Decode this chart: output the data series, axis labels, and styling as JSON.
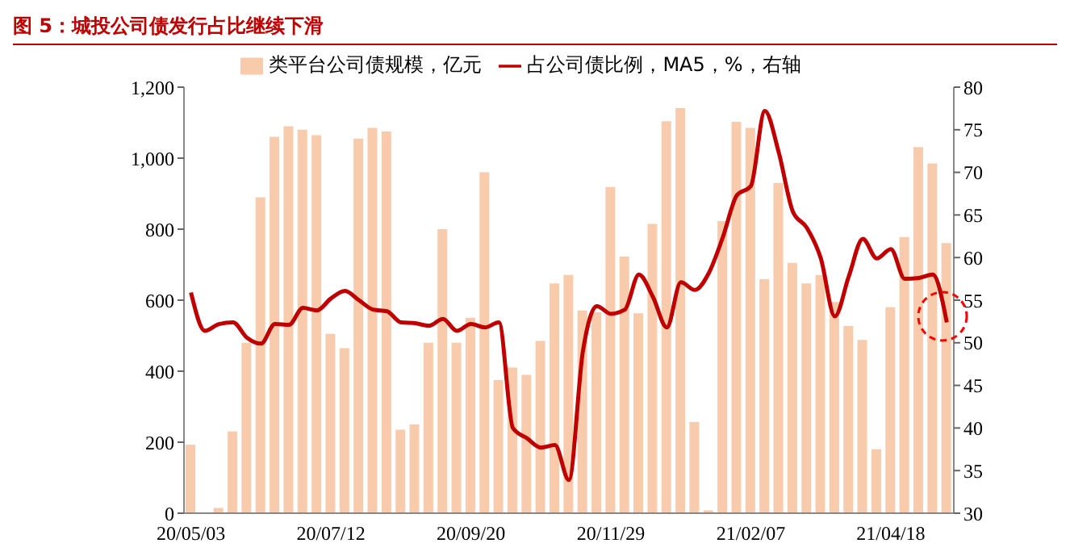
{
  "chart_data": {
    "type": "bar",
    "title": "图 5：城投公司债发行占比继续下滑",
    "categories": [
      "20/05/03",
      null,
      null,
      null,
      null,
      null,
      null,
      null,
      null,
      null,
      "20/07/12",
      null,
      null,
      null,
      null,
      null,
      null,
      null,
      null,
      null,
      "20/09/20",
      null,
      null,
      null,
      null,
      null,
      null,
      null,
      null,
      null,
      "20/11/29",
      null,
      null,
      null,
      null,
      null,
      null,
      null,
      null,
      null,
      "21/02/07",
      null,
      null,
      null,
      null,
      null,
      null,
      null,
      null,
      null,
      "21/04/18",
      null,
      null,
      null,
      null
    ],
    "series": [
      {
        "name": "类平台公司债规模，亿元",
        "color": "#f8cbad",
        "values": [
          193,
          0,
          15,
          230,
          480,
          890,
          1060,
          1090,
          1080,
          1065,
          505,
          465,
          1055,
          1085,
          1075,
          235,
          250,
          480,
          800,
          480,
          550,
          960,
          375,
          410,
          390,
          485,
          647,
          671,
          571,
          566,
          919,
          723,
          563,
          815,
          1104,
          1141,
          257,
          8,
          823,
          1102,
          1085,
          659,
          930,
          705,
          647,
          671,
          595,
          527,
          488,
          180,
          580,
          778,
          1031,
          985,
          761
        ]
      },
      {
        "name": "占公司债比例，MA5，%，右轴",
        "type": "line",
        "axis": "y2",
        "color": "#c00000",
        "values": [
          55.9,
          51.4,
          52.2,
          52.4,
          50.6,
          49.9,
          52.2,
          52.1,
          54.1,
          53.8,
          55.2,
          56.1,
          55.0,
          53.9,
          53.7,
          52.4,
          52.3,
          52.0,
          52.8,
          51.4,
          52.2,
          51.8,
          52.4,
          40.0,
          38.8,
          37.7,
          38.0,
          33.9,
          49.0,
          54.3,
          53.4,
          53.9,
          58.0,
          55.4,
          51.8,
          57.1,
          56.2,
          58.2,
          62.4,
          67.3,
          68.4,
          77.2,
          72.3,
          65.4,
          63.5,
          59.9,
          53.1,
          57.8,
          62.2,
          59.9,
          61.0,
          57.5,
          57.6,
          58.0,
          52.4
        ]
      }
    ],
    "ylim": [
      0,
      1200
    ],
    "yticks": [
      0,
      200,
      400,
      600,
      800,
      {
        "value": 1000,
        "label": "1,000"
      },
      {
        "value": 1200,
        "label": "1,200"
      }
    ],
    "y2lim": [
      30,
      80
    ],
    "y2ticks": [
      30,
      35,
      40,
      45,
      50,
      55,
      60,
      65,
      70,
      75,
      80
    ],
    "legend": "top",
    "grid": false
  }
}
